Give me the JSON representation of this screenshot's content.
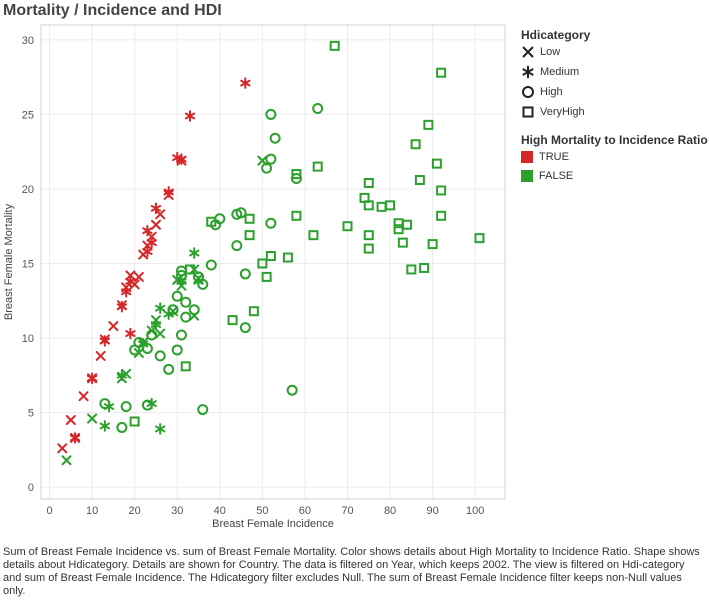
{
  "chart_data": {
    "type": "scatter",
    "title": "Mortality / Incidence and HDI",
    "xlabel": "Breast Female Incidence",
    "ylabel": "Breast Female Mortality",
    "xlim": [
      -2,
      107
    ],
    "ylim": [
      -0.8,
      31
    ],
    "xticks": [
      0,
      10,
      20,
      30,
      40,
      50,
      60,
      70,
      80,
      90,
      100
    ],
    "yticks": [
      0,
      5,
      10,
      15,
      20,
      25,
      30
    ],
    "grid": true,
    "colors": {
      "TRUE": "#d62728",
      "FALSE": "#2ca02c"
    },
    "color_legend": {
      "title": "High Mortality to Incidence Ratio",
      "entries": [
        "TRUE",
        "FALSE"
      ]
    },
    "shape_legend": {
      "title": "Hdicategory",
      "entries": [
        "Low",
        "Medium",
        "High",
        "VeryHigh"
      ]
    },
    "series": [
      {
        "name": "TRUE",
        "shape": "Low",
        "points": [
          [
            3,
            2.6
          ],
          [
            5,
            4.5
          ],
          [
            6,
            3.3
          ],
          [
            8,
            6.1
          ],
          [
            10,
            7.3
          ],
          [
            12,
            8.8
          ],
          [
            13,
            9.9
          ],
          [
            15,
            10.8
          ],
          [
            17,
            12.2
          ],
          [
            18,
            13.4
          ],
          [
            19,
            14.2
          ],
          [
            20,
            13.6
          ],
          [
            21,
            14.1
          ],
          [
            22,
            15.6
          ],
          [
            23,
            16.2
          ],
          [
            24,
            16.8
          ],
          [
            25,
            17.6
          ],
          [
            26,
            18.3
          ],
          [
            28,
            19.6
          ],
          [
            31,
            21.9
          ]
        ]
      },
      {
        "name": "TRUE",
        "shape": "Medium",
        "points": [
          [
            6,
            3.3
          ],
          [
            10,
            7.3
          ],
          [
            13,
            9.8
          ],
          [
            17,
            12.1
          ],
          [
            18,
            13.1
          ],
          [
            19,
            10.3
          ],
          [
            19,
            13.8
          ],
          [
            23,
            15.8
          ],
          [
            23,
            17.2
          ],
          [
            24,
            16.4
          ],
          [
            25,
            18.7
          ],
          [
            28,
            19.8
          ],
          [
            30,
            22.1
          ],
          [
            31,
            22.0
          ],
          [
            33,
            24.9
          ],
          [
            46,
            27.1
          ]
        ]
      },
      {
        "name": "FALSE",
        "shape": "Low",
        "points": [
          [
            4,
            1.8
          ],
          [
            10,
            4.6
          ],
          [
            17,
            7.3
          ],
          [
            18,
            7.6
          ],
          [
            21,
            9.0
          ],
          [
            22,
            9.7
          ],
          [
            24,
            10.5
          ],
          [
            25,
            11.2
          ],
          [
            26,
            10.3
          ],
          [
            29,
            11.8
          ],
          [
            30,
            13.9
          ],
          [
            31,
            13.5
          ],
          [
            34,
            14.6
          ],
          [
            34,
            11.5
          ],
          [
            35,
            14.0
          ],
          [
            50,
            21.9
          ]
        ]
      },
      {
        "name": "FALSE",
        "shape": "Medium",
        "points": [
          [
            13,
            4.1
          ],
          [
            14,
            5.4
          ],
          [
            17,
            7.5
          ],
          [
            22,
            9.6
          ],
          [
            24,
            5.6
          ],
          [
            25,
            10.9
          ],
          [
            26,
            12.0
          ],
          [
            26,
            3.9
          ],
          [
            28,
            11.6
          ],
          [
            31,
            13.8
          ],
          [
            34,
            15.7
          ],
          [
            35,
            13.8
          ]
        ]
      },
      {
        "name": "FALSE",
        "shape": "High",
        "points": [
          [
            13,
            5.6
          ],
          [
            17,
            4.0
          ],
          [
            18,
            5.4
          ],
          [
            20,
            9.2
          ],
          [
            21,
            9.7
          ],
          [
            23,
            9.3
          ],
          [
            23,
            5.5
          ],
          [
            24,
            10.2
          ],
          [
            26,
            8.8
          ],
          [
            28,
            7.9
          ],
          [
            29,
            11.9
          ],
          [
            30,
            9.2
          ],
          [
            30,
            12.8
          ],
          [
            31,
            14.2
          ],
          [
            31,
            14.5
          ],
          [
            31,
            10.2
          ],
          [
            32,
            12.4
          ],
          [
            32,
            11.4
          ],
          [
            34,
            11.9
          ],
          [
            35,
            14.1
          ],
          [
            36,
            13.6
          ],
          [
            36,
            5.2
          ],
          [
            38,
            14.9
          ],
          [
            39,
            17.6
          ],
          [
            40,
            18.0
          ],
          [
            44,
            18.3
          ],
          [
            44,
            16.2
          ],
          [
            45,
            18.4
          ],
          [
            46,
            14.3
          ],
          [
            46,
            10.7
          ],
          [
            51,
            21.4
          ],
          [
            52,
            22.0
          ],
          [
            52,
            25.0
          ],
          [
            52,
            17.7
          ],
          [
            53,
            23.4
          ],
          [
            58,
            20.7
          ],
          [
            57,
            6.5
          ],
          [
            63,
            25.4
          ]
        ]
      },
      {
        "name": "FALSE",
        "shape": "VeryHigh",
        "points": [
          [
            20,
            4.4
          ],
          [
            32,
            8.1
          ],
          [
            33,
            14.6
          ],
          [
            38,
            17.8
          ],
          [
            43,
            11.2
          ],
          [
            47,
            18.0
          ],
          [
            47,
            16.9
          ],
          [
            48,
            11.8
          ],
          [
            50,
            15.0
          ],
          [
            51,
            14.1
          ],
          [
            52,
            15.5
          ],
          [
            56,
            15.4
          ],
          [
            58,
            18.2
          ],
          [
            58,
            21.0
          ],
          [
            62,
            16.9
          ],
          [
            63,
            21.5
          ],
          [
            67,
            29.6
          ],
          [
            70,
            17.5
          ],
          [
            74,
            19.4
          ],
          [
            75,
            18.9
          ],
          [
            75,
            20.4
          ],
          [
            75,
            16.9
          ],
          [
            75,
            16.0
          ],
          [
            78,
            18.8
          ],
          [
            80,
            18.9
          ],
          [
            82,
            17.3
          ],
          [
            82,
            17.7
          ],
          [
            83,
            16.4
          ],
          [
            84,
            17.6
          ],
          [
            85,
            14.6
          ],
          [
            86,
            23.0
          ],
          [
            87,
            20.6
          ],
          [
            88,
            14.7
          ],
          [
            89,
            24.3
          ],
          [
            90,
            16.3
          ],
          [
            91,
            21.7
          ],
          [
            92,
            19.9
          ],
          [
            92,
            18.2
          ],
          [
            92,
            27.8
          ],
          [
            101,
            16.7
          ]
        ]
      }
    ]
  },
  "caption": "Sum of Breast Female Incidence vs. sum of Breast Female Mortality.  Color shows details about High Mortality to Incidence Ratio.  Shape shows details about Hdicategory.  Details are shown for Country. The data is filtered on Year, which keeps 2002. The view is filtered on Hdi-category and sum of Breast Female Incidence. The Hdicategory filter excludes Null. The sum of Breast Female Incidence filter keeps non-Null values only."
}
